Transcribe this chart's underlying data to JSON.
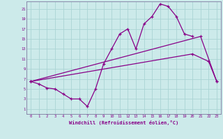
{
  "background_color": "#cceaea",
  "grid_color": "#aad4d4",
  "line_color": "#880088",
  "spine_color": "#8888aa",
  "xlim": [
    -0.5,
    23.5
  ],
  "ylim": [
    0,
    22.5
  ],
  "xticks": [
    0,
    1,
    2,
    3,
    4,
    5,
    6,
    7,
    8,
    9,
    10,
    11,
    12,
    13,
    14,
    15,
    16,
    17,
    18,
    19,
    20,
    21,
    22,
    23
  ],
  "yticks": [
    1,
    3,
    5,
    7,
    9,
    11,
    13,
    15,
    17,
    19,
    21
  ],
  "xlabel": "Windchill (Refroidissement éolien,°C)",
  "line1_x": [
    0,
    1,
    2,
    3,
    4,
    5,
    6,
    7,
    8,
    9,
    10,
    11,
    12,
    13,
    14,
    15,
    16,
    17,
    18,
    19,
    20
  ],
  "line1_y": [
    6.5,
    6.0,
    5.2,
    5.0,
    4.0,
    3.0,
    3.0,
    1.5,
    5.0,
    10.0,
    13.0,
    16.0,
    17.0,
    13.0,
    18.0,
    19.5,
    22.0,
    21.5,
    19.5,
    16.0,
    15.5
  ],
  "line2_x": [
    0,
    21,
    23
  ],
  "line2_y": [
    6.5,
    15.5,
    6.5
  ],
  "line3_x": [
    0,
    20,
    22,
    23
  ],
  "line3_y": [
    6.5,
    12.0,
    10.5,
    6.5
  ]
}
